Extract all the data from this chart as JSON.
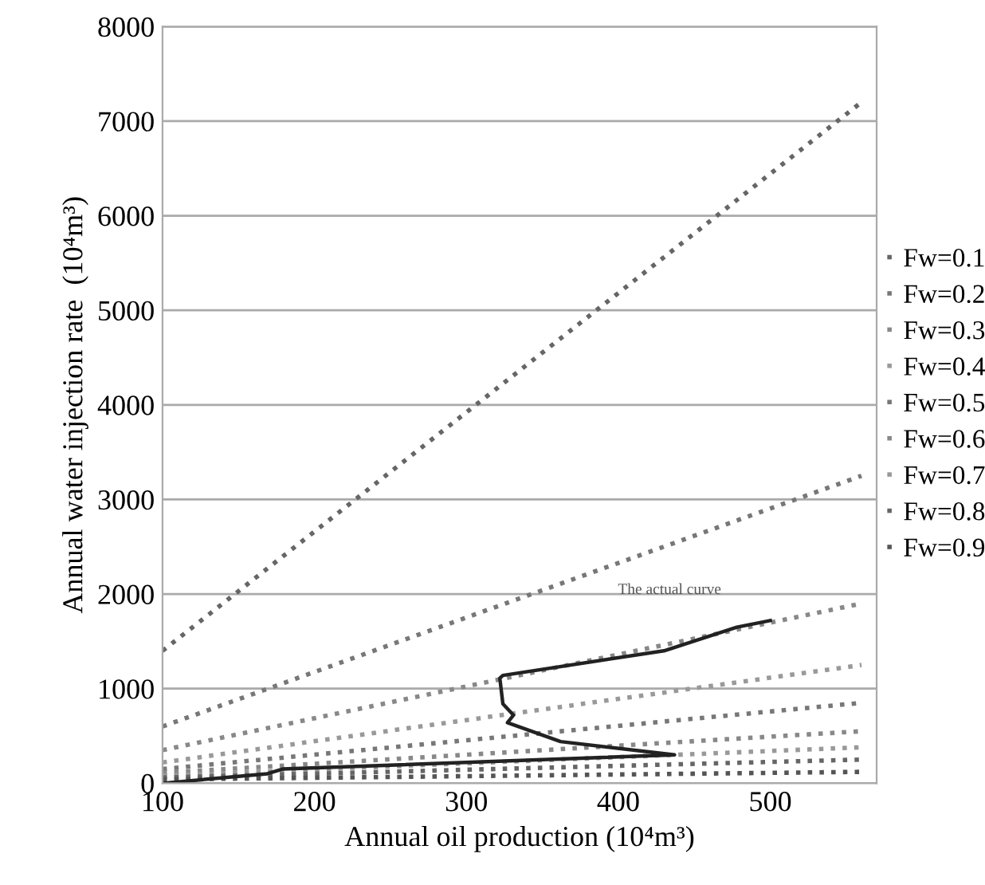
{
  "chart_data": {
    "type": "line",
    "xlabel": "Annual oil production (10⁴m³)",
    "ylabel": "Annual water injection rate  (10⁴m³)",
    "xlim": [
      100,
      570
    ],
    "ylim": [
      0,
      8000
    ],
    "xticks": [
      100,
      200,
      300,
      400,
      500
    ],
    "yticks": [
      0,
      1000,
      2000,
      3000,
      4000,
      5000,
      6000,
      7000,
      8000
    ],
    "grid": "y",
    "legend": "right",
    "line_style": "dotted",
    "series": [
      {
        "name": "Fw=0.1",
        "color": "#666666",
        "x": [
          100,
          560
        ],
        "values": [
          1400,
          7200
        ]
      },
      {
        "name": "Fw=0.2",
        "color": "#777777",
        "x": [
          100,
          560
        ],
        "values": [
          600,
          3250
        ]
      },
      {
        "name": "Fw=0.3",
        "color": "#888888",
        "x": [
          100,
          560
        ],
        "values": [
          350,
          1900
        ]
      },
      {
        "name": "Fw=0.4",
        "color": "#999999",
        "x": [
          100,
          560
        ],
        "values": [
          220,
          1250
        ]
      },
      {
        "name": "Fw=0.5",
        "color": "#777777",
        "x": [
          100,
          560
        ],
        "values": [
          150,
          850
        ]
      },
      {
        "name": "Fw=0.6",
        "color": "#888888",
        "x": [
          100,
          560
        ],
        "values": [
          110,
          550
        ]
      },
      {
        "name": "Fw=0.7",
        "color": "#999999",
        "x": [
          100,
          560
        ],
        "values": [
          80,
          380
        ]
      },
      {
        "name": "Fw=0.8",
        "color": "#666666",
        "x": [
          100,
          560
        ],
        "values": [
          60,
          250
        ]
      },
      {
        "name": "Fw=0.9",
        "color": "#555555",
        "x": [
          100,
          560
        ],
        "values": [
          40,
          120
        ]
      },
      {
        "color": "#222222",
        "line_style": "solid",
        "x": [
          100,
          169,
          179,
          437,
          362,
          327,
          331,
          324,
          322,
          324,
          430,
          478,
          500
        ],
        "values": [
          0,
          100,
          150,
          300,
          440,
          640,
          720,
          840,
          1110,
          1140,
          1400,
          1650,
          1720
        ]
      }
    ],
    "annotations": [
      "The actual curve"
    ]
  }
}
